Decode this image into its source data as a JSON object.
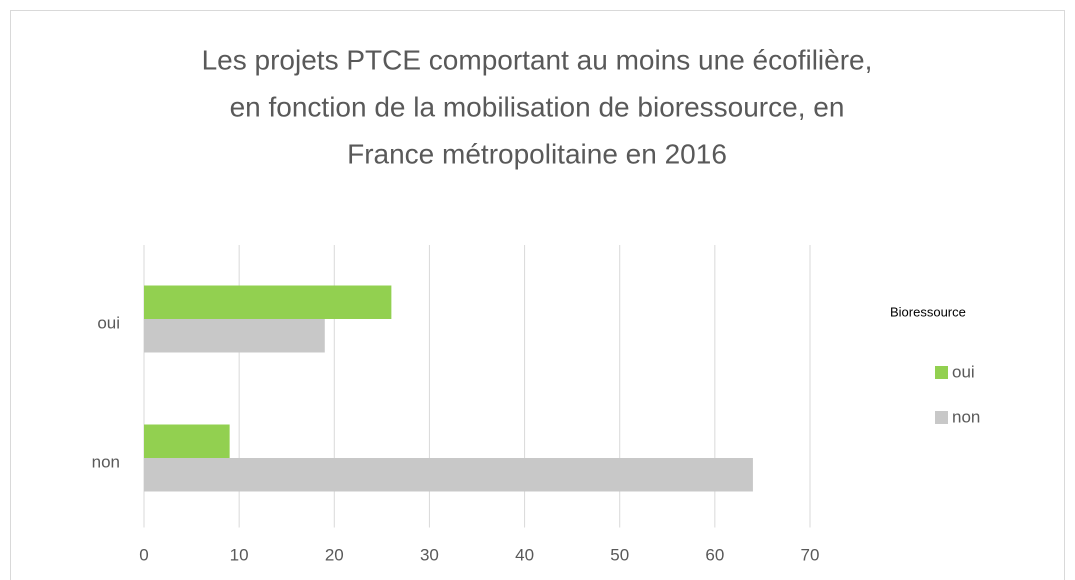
{
  "chart_data": {
    "type": "bar",
    "orientation": "horizontal",
    "title": [
      "Les projets PTCE comportant au moins une écofilière,",
      "en fonction de la mobilisation de bioressource, en",
      "France métropolitaine en 2016"
    ],
    "categories": [
      "oui",
      "non"
    ],
    "series": [
      {
        "name": "oui",
        "color": "#92d050",
        "values": [
          26,
          9
        ]
      },
      {
        "name": "non",
        "color": "#c8c8c8",
        "values": [
          19,
          64
        ]
      }
    ],
    "legend_title": "Bioressource",
    "legend": "right",
    "xlim": [
      0,
      70
    ],
    "xticks": [
      0,
      10,
      20,
      30,
      40,
      50,
      60,
      70
    ],
    "grid": true
  }
}
